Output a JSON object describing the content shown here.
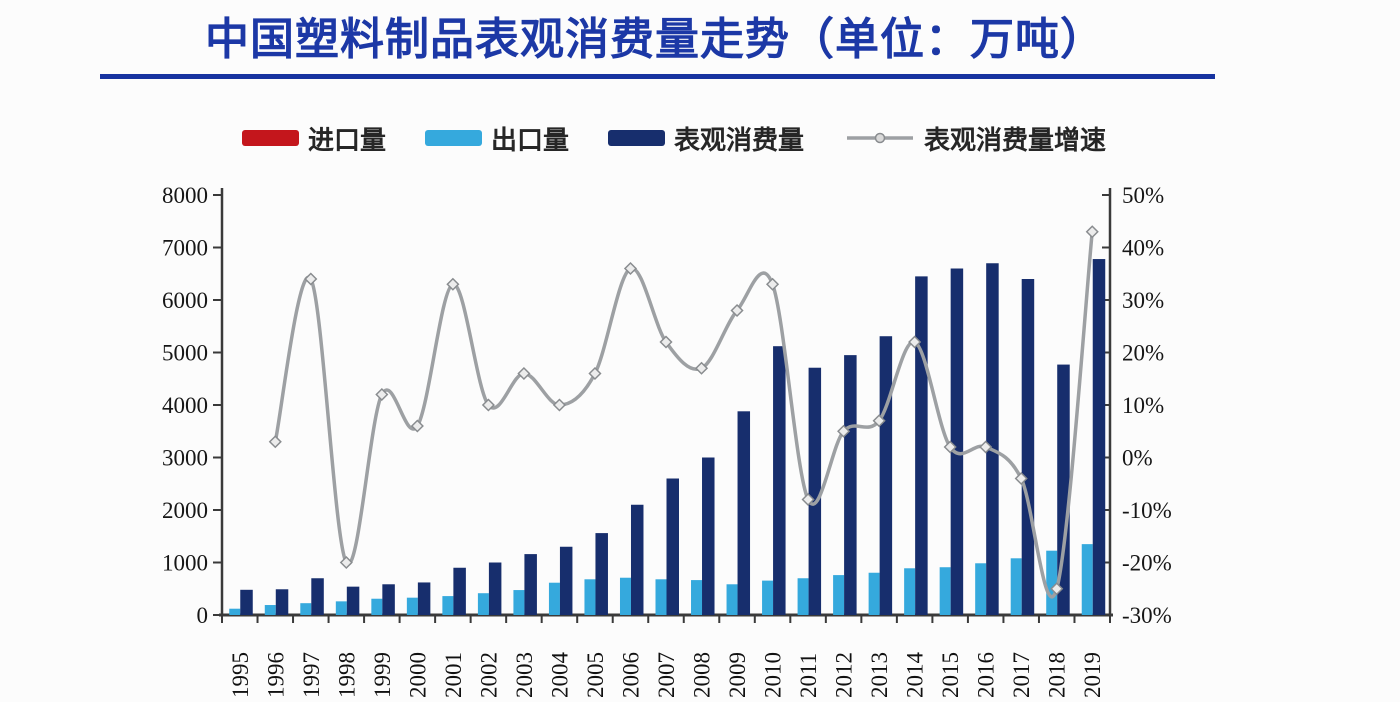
{
  "title": "中国塑料制品表观消费量走势（单位：万吨）",
  "legend": {
    "items": [
      {
        "label": "进口量",
        "type": "bar",
        "color": "#c4161c"
      },
      {
        "label": "出口量",
        "type": "bar",
        "color": "#35a9dd"
      },
      {
        "label": "表观消费量",
        "type": "bar",
        "color": "#172e6d"
      },
      {
        "label": "表观消费量增速",
        "type": "line",
        "color": "#9da0a3"
      }
    ]
  },
  "chart_data": {
    "type": "bar+line",
    "title": "中国塑料制品表观消费量走势（单位：万吨）",
    "categories": [
      "1995",
      "1996",
      "1997",
      "1998",
      "1999",
      "2000",
      "2001",
      "2002",
      "2003",
      "2004",
      "2005",
      "2006",
      "2007",
      "2008",
      "2009",
      "2010",
      "2011",
      "2012",
      "2013",
      "2014",
      "2015",
      "2016",
      "2017",
      "2018",
      "2019"
    ],
    "series": [
      {
        "name": "进口量",
        "type": "bar",
        "axis": "left",
        "color": "#c4161c",
        "values": [
          0,
          0,
          0,
          0,
          0,
          0,
          0,
          0,
          0,
          0,
          0,
          0,
          0,
          0,
          0,
          0,
          0,
          0,
          0,
          0,
          0,
          0,
          0,
          0,
          0
        ]
      },
      {
        "name": "出口量",
        "type": "bar",
        "axis": "left",
        "color": "#35a9dd",
        "values": [
          120,
          190,
          225,
          260,
          310,
          330,
          360,
          415,
          475,
          615,
          680,
          710,
          680,
          665,
          585,
          655,
          700,
          760,
          805,
          890,
          910,
          985,
          1080,
          1225,
          1350
        ]
      },
      {
        "name": "表观消费量",
        "type": "bar",
        "axis": "left",
        "color": "#172e6d",
        "values": [
          480,
          490,
          700,
          540,
          585,
          620,
          900,
          1000,
          1160,
          1300,
          1560,
          2100,
          2600,
          3000,
          3880,
          5120,
          4710,
          4950,
          5310,
          6450,
          6600,
          6700,
          6400,
          4770,
          6780
        ]
      },
      {
        "name": "表观消费量增速",
        "type": "line",
        "axis": "right",
        "color": "#9da0a3",
        "values_pct": [
          null,
          3,
          34,
          -20,
          12,
          6,
          33,
          10,
          16,
          10,
          16,
          36,
          22,
          17,
          28,
          33,
          -8,
          5,
          7,
          22,
          2,
          2,
          -4,
          -25,
          43
        ]
      }
    ],
    "left_axis": {
      "min": 0,
      "max": 8000,
      "step": 1000,
      "ticks": [
        0,
        1000,
        2000,
        3000,
        4000,
        5000,
        6000,
        7000,
        8000
      ],
      "tick_labels": [
        "0",
        "1000",
        "2000",
        "3000",
        "4000",
        "5000",
        "6000",
        "7000",
        "8000"
      ]
    },
    "right_axis": {
      "min": -30,
      "max": 50,
      "step": 10,
      "ticks": [
        -30,
        -20,
        -10,
        0,
        10,
        20,
        30,
        40,
        50
      ],
      "tick_labels": [
        "-30%",
        "-20%",
        "-10%",
        "0%",
        "10%",
        "20%",
        "30%",
        "40%",
        "50%"
      ]
    },
    "grid": false,
    "legend_position": "top",
    "x_labels_rotated_deg": -90
  },
  "colors": {
    "title": "#1c38a6",
    "title_rule": "#1733a0",
    "axis_line": "#3a3a3a",
    "tick_text": "#161616",
    "line_marker_fill": "#ececec",
    "line_marker_stroke": "#898c8f"
  }
}
